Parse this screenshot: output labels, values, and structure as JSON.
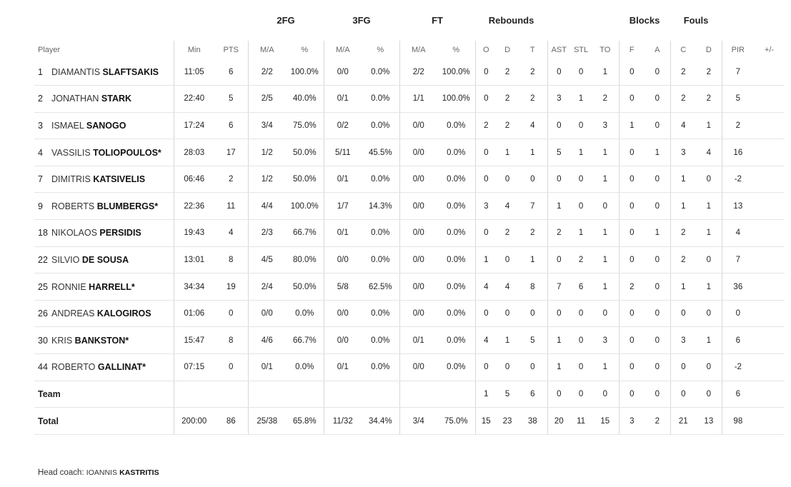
{
  "group_headers": {
    "fg2": "2FG",
    "fg3": "3FG",
    "ft": "FT",
    "rebounds": "Rebounds",
    "blocks": "Blocks",
    "fouls": "Fouls"
  },
  "columns": [
    "Player",
    "Min",
    "PTS",
    "M/A",
    "%",
    "M/A",
    "%",
    "M/A",
    "%",
    "O",
    "D",
    "T",
    "AST",
    "STL",
    "TO",
    "F",
    "A",
    "C",
    "D",
    "PIR",
    "+/-"
  ],
  "players": [
    {
      "num": "1",
      "first": "DIAMANTIS",
      "last": "SLAFTSAKIS",
      "stats": [
        "11:05",
        "6",
        "2/2",
        "100.0%",
        "0/0",
        "0.0%",
        "2/2",
        "100.0%",
        "0",
        "2",
        "2",
        "0",
        "0",
        "1",
        "0",
        "0",
        "2",
        "2",
        "7",
        ""
      ]
    },
    {
      "num": "2",
      "first": "JONATHAN",
      "last": "STARK",
      "stats": [
        "22:40",
        "5",
        "2/5",
        "40.0%",
        "0/1",
        "0.0%",
        "1/1",
        "100.0%",
        "0",
        "2",
        "2",
        "3",
        "1",
        "2",
        "0",
        "0",
        "2",
        "2",
        "5",
        ""
      ]
    },
    {
      "num": "3",
      "first": "ISMAEL",
      "last": "SANOGO",
      "stats": [
        "17:24",
        "6",
        "3/4",
        "75.0%",
        "0/2",
        "0.0%",
        "0/0",
        "0.0%",
        "2",
        "2",
        "4",
        "0",
        "0",
        "3",
        "1",
        "0",
        "4",
        "1",
        "2",
        ""
      ]
    },
    {
      "num": "4",
      "first": "VASSILIS",
      "last": "TOLIOPOULOS*",
      "stats": [
        "28:03",
        "17",
        "1/2",
        "50.0%",
        "5/11",
        "45.5%",
        "0/0",
        "0.0%",
        "0",
        "1",
        "1",
        "5",
        "1",
        "1",
        "0",
        "1",
        "3",
        "4",
        "16",
        ""
      ]
    },
    {
      "num": "7",
      "first": "DIMITRIS",
      "last": "KATSIVELIS",
      "stats": [
        "06:46",
        "2",
        "1/2",
        "50.0%",
        "0/1",
        "0.0%",
        "0/0",
        "0.0%",
        "0",
        "0",
        "0",
        "0",
        "0",
        "1",
        "0",
        "0",
        "1",
        "0",
        "-2",
        ""
      ]
    },
    {
      "num": "9",
      "first": "ROBERTS",
      "last": "BLUMBERGS*",
      "stats": [
        "22:36",
        "11",
        "4/4",
        "100.0%",
        "1/7",
        "14.3%",
        "0/0",
        "0.0%",
        "3",
        "4",
        "7",
        "1",
        "0",
        "0",
        "0",
        "0",
        "1",
        "1",
        "13",
        ""
      ]
    },
    {
      "num": "18",
      "first": "NIKOLAOS",
      "last": "PERSIDIS",
      "stats": [
        "19:43",
        "4",
        "2/3",
        "66.7%",
        "0/1",
        "0.0%",
        "0/0",
        "0.0%",
        "0",
        "2",
        "2",
        "2",
        "1",
        "1",
        "0",
        "1",
        "2",
        "1",
        "4",
        ""
      ]
    },
    {
      "num": "22",
      "first": "SILVIO",
      "last": "DE SOUSA",
      "stats": [
        "13:01",
        "8",
        "4/5",
        "80.0%",
        "0/0",
        "0.0%",
        "0/0",
        "0.0%",
        "1",
        "0",
        "1",
        "0",
        "2",
        "1",
        "0",
        "0",
        "2",
        "0",
        "7",
        ""
      ]
    },
    {
      "num": "25",
      "first": "RONNIE",
      "last": "HARRELL*",
      "stats": [
        "34:34",
        "19",
        "2/4",
        "50.0%",
        "5/8",
        "62.5%",
        "0/0",
        "0.0%",
        "4",
        "4",
        "8",
        "7",
        "6",
        "1",
        "2",
        "0",
        "1",
        "1",
        "36",
        ""
      ]
    },
    {
      "num": "26",
      "first": "ANDREAS",
      "last": "KALOGIROS",
      "stats": [
        "01:06",
        "0",
        "0/0",
        "0.0%",
        "0/0",
        "0.0%",
        "0/0",
        "0.0%",
        "0",
        "0",
        "0",
        "0",
        "0",
        "0",
        "0",
        "0",
        "0",
        "0",
        "0",
        ""
      ]
    },
    {
      "num": "30",
      "first": "KRIS",
      "last": "BANKSTON*",
      "stats": [
        "15:47",
        "8",
        "4/6",
        "66.7%",
        "0/0",
        "0.0%",
        "0/1",
        "0.0%",
        "4",
        "1",
        "5",
        "1",
        "0",
        "3",
        "0",
        "0",
        "3",
        "1",
        "6",
        ""
      ]
    },
    {
      "num": "44",
      "first": "ROBERTO",
      "last": "GALLINAT*",
      "stats": [
        "07:15",
        "0",
        "0/1",
        "0.0%",
        "0/1",
        "0.0%",
        "0/0",
        "0.0%",
        "0",
        "0",
        "0",
        "1",
        "0",
        "1",
        "0",
        "0",
        "0",
        "0",
        "-2",
        ""
      ]
    }
  ],
  "team_row": {
    "label": "Team",
    "stats": [
      "",
      "",
      "",
      "",
      "",
      "",
      "",
      "",
      "1",
      "5",
      "6",
      "0",
      "0",
      "0",
      "0",
      "0",
      "0",
      "0",
      "6",
      ""
    ]
  },
  "total_row": {
    "label": "Total",
    "stats": [
      "200:00",
      "86",
      "25/38",
      "65.8%",
      "11/32",
      "34.4%",
      "3/4",
      "75.0%",
      "15",
      "23",
      "38",
      "20",
      "11",
      "15",
      "3",
      "2",
      "21",
      "13",
      "98",
      ""
    ]
  },
  "coach": {
    "label": "Head coach:",
    "first": "IOANNIS",
    "last": "KASTRITIS"
  }
}
